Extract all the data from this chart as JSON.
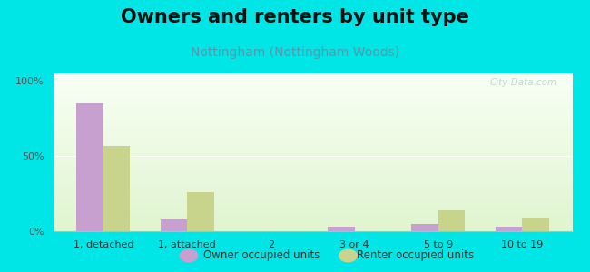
{
  "title": "Owners and renters by unit type",
  "subtitle": "Nottingham (Nottingham Woods)",
  "categories": [
    "1, detached",
    "1, attached",
    "2",
    "3 or 4",
    "5 to 9",
    "10 to 19"
  ],
  "owner_values": [
    85,
    8,
    0,
    3,
    5,
    3
  ],
  "renter_values": [
    57,
    26,
    0,
    0,
    14,
    9
  ],
  "owner_color": "#c8a0d0",
  "renter_color": "#c8d48c",
  "background_color": "#00e5e5",
  "ylim": [
    0,
    105
  ],
  "yticks": [
    0,
    50,
    100
  ],
  "ytick_labels": [
    "0%",
    "50%",
    "100%"
  ],
  "title_fontsize": 15,
  "subtitle_fontsize": 10,
  "legend_label_owner": "Owner occupied units",
  "legend_label_renter": "Renter occupied units",
  "bar_width": 0.32,
  "watermark": "City-Data.com"
}
